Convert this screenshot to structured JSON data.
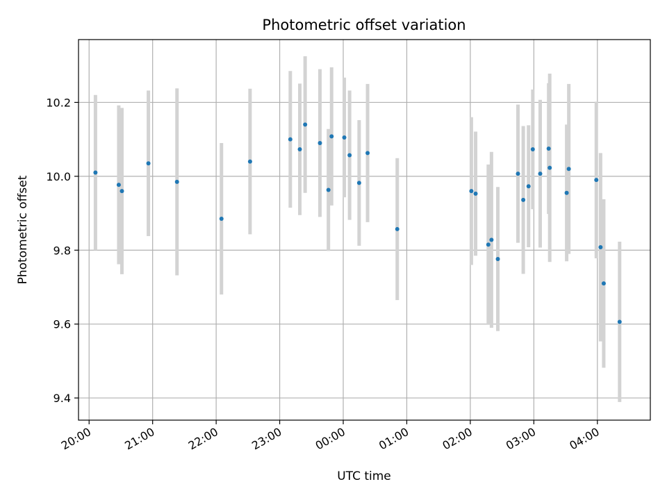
{
  "chart_data": {
    "type": "scatter",
    "title": "Photometric offset variation",
    "xlabel": "UTC time",
    "ylabel": "Photometric offset",
    "x_axis_type": "time",
    "x_date_start": "2000-01-01",
    "xlim": [
      "2000-01-01T19:50",
      "2000-01-02T04:50"
    ],
    "ylim": [
      9.34,
      10.37
    ],
    "x_ticks": [
      {
        "t": "2000-01-01T20:00",
        "label": "20:00"
      },
      {
        "t": "2000-01-01T21:00",
        "label": "21:00"
      },
      {
        "t": "2000-01-01T22:00",
        "label": "22:00"
      },
      {
        "t": "2000-01-01T23:00",
        "label": "23:00"
      },
      {
        "t": "2000-01-02T00:00",
        "label": "00:00"
      },
      {
        "t": "2000-01-02T01:00",
        "label": "01:00"
      },
      {
        "t": "2000-01-02T02:00",
        "label": "02:00"
      },
      {
        "t": "2000-01-02T03:00",
        "label": "03:00"
      },
      {
        "t": "2000-01-02T04:00",
        "label": "04:00"
      }
    ],
    "y_ticks": [
      {
        "v": 9.4,
        "label": "9.4"
      },
      {
        "v": 9.6,
        "label": "9.6"
      },
      {
        "v": 9.8,
        "label": "9.8"
      },
      {
        "v": 10.0,
        "label": "10.0"
      },
      {
        "v": 10.2,
        "label": "10.2"
      }
    ],
    "grid": true,
    "legend": "none",
    "colors": {
      "point": "#1f77b4",
      "errorbar": "#d3d3d3",
      "grid": "#b0b0b0"
    },
    "points": [
      {
        "t": "2000-01-01T20:06",
        "y": 10.01,
        "err": 0.21
      },
      {
        "t": "2000-01-01T20:28",
        "y": 9.977,
        "err": 0.215
      },
      {
        "t": "2000-01-01T20:31",
        "y": 9.96,
        "err": 0.225
      },
      {
        "t": "2000-01-01T20:56",
        "y": 10.035,
        "err": 0.197
      },
      {
        "t": "2000-01-01T21:23",
        "y": 9.985,
        "err": 0.253
      },
      {
        "t": "2000-01-01T22:05",
        "y": 9.885,
        "err": 0.205
      },
      {
        "t": "2000-01-01T22:32",
        "y": 10.04,
        "err": 0.197
      },
      {
        "t": "2000-01-01T23:10",
        "y": 10.1,
        "err": 0.185
      },
      {
        "t": "2000-01-01T23:19",
        "y": 10.073,
        "err": 0.178
      },
      {
        "t": "2000-01-01T23:24",
        "y": 10.14,
        "err": 0.185
      },
      {
        "t": "2000-01-01T23:38",
        "y": 10.09,
        "err": 0.2
      },
      {
        "t": "2000-01-01T23:46",
        "y": 9.963,
        "err": 0.165
      },
      {
        "t": "2000-01-01T23:49",
        "y": 10.108,
        "err": 0.187
      },
      {
        "t": "2000-01-02T00:01",
        "y": 10.105,
        "err": 0.162
      },
      {
        "t": "2000-01-02T00:06",
        "y": 10.057,
        "err": 0.175
      },
      {
        "t": "2000-01-02T00:15",
        "y": 9.982,
        "err": 0.17
      },
      {
        "t": "2000-01-02T00:23",
        "y": 10.063,
        "err": 0.187
      },
      {
        "t": "2000-01-02T00:51",
        "y": 9.857,
        "err": 0.192
      },
      {
        "t": "2000-01-02T02:01",
        "y": 9.96,
        "err": 0.2
      },
      {
        "t": "2000-01-02T02:05",
        "y": 9.953,
        "err": 0.168
      },
      {
        "t": "2000-01-02T02:17",
        "y": 9.815,
        "err": 0.217
      },
      {
        "t": "2000-01-02T02:20",
        "y": 9.828,
        "err": 0.238
      },
      {
        "t": "2000-01-02T02:26",
        "y": 9.776,
        "err": 0.195
      },
      {
        "t": "2000-01-02T02:45",
        "y": 10.007,
        "err": 0.187
      },
      {
        "t": "2000-01-02T02:50",
        "y": 9.936,
        "err": 0.2
      },
      {
        "t": "2000-01-02T02:55",
        "y": 9.973,
        "err": 0.165
      },
      {
        "t": "2000-01-02T02:59",
        "y": 10.073,
        "err": 0.162
      },
      {
        "t": "2000-01-02T03:06",
        "y": 10.007,
        "err": 0.2
      },
      {
        "t": "2000-01-02T03:14",
        "y": 10.075,
        "err": 0.177
      },
      {
        "t": "2000-01-02T03:15",
        "y": 10.023,
        "err": 0.255
      },
      {
        "t": "2000-01-02T03:31",
        "y": 9.955,
        "err": 0.185
      },
      {
        "t": "2000-01-02T03:33",
        "y": 10.02,
        "err": 0.23
      },
      {
        "t": "2000-01-02T03:59",
        "y": 9.99,
        "err": 0.212
      },
      {
        "t": "2000-01-02T04:03",
        "y": 9.808,
        "err": 0.255
      },
      {
        "t": "2000-01-02T04:06",
        "y": 9.71,
        "err": 0.228
      },
      {
        "t": "2000-01-02T04:21",
        "y": 9.606,
        "err": 0.217
      }
    ]
  }
}
